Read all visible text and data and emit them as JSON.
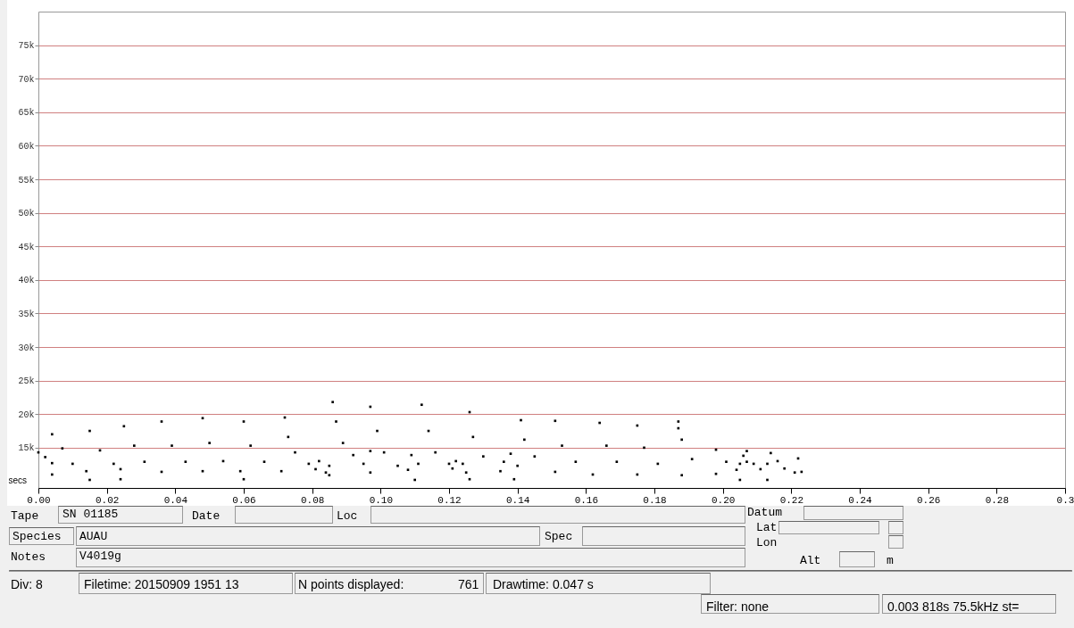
{
  "chart_data": {
    "type": "scatter",
    "xlabel": "secs",
    "x": [
      0.0,
      0.002,
      0.004,
      0.004,
      0.004,
      0.007,
      0.01,
      0.014,
      0.015,
      0.015,
      0.018,
      0.022,
      0.024,
      0.024,
      0.025,
      0.028,
      0.031,
      0.036,
      0.036,
      0.039,
      0.043,
      0.048,
      0.048,
      0.05,
      0.054,
      0.059,
      0.06,
      0.06,
      0.062,
      0.066,
      0.071,
      0.072,
      0.073,
      0.075,
      0.079,
      0.081,
      0.082,
      0.084,
      0.085,
      0.085,
      0.086,
      0.087,
      0.089,
      0.092,
      0.095,
      0.097,
      0.097,
      0.097,
      0.099,
      0.101,
      0.105,
      0.108,
      0.109,
      0.11,
      0.111,
      0.112,
      0.114,
      0.116,
      0.12,
      0.121,
      0.122,
      0.124,
      0.125,
      0.126,
      0.126,
      0.127,
      0.13,
      0.135,
      0.136,
      0.138,
      0.139,
      0.14,
      0.141,
      0.142,
      0.145,
      0.151,
      0.151,
      0.153,
      0.157,
      0.162,
      0.164,
      0.166,
      0.169,
      0.175,
      0.175,
      0.177,
      0.181,
      0.188,
      0.187,
      0.187,
      0.188,
      0.191,
      0.198,
      0.198,
      0.201,
      0.204,
      0.205,
      0.205,
      0.206,
      0.207,
      0.207,
      0.209,
      0.211,
      0.213,
      0.213,
      0.214,
      0.216,
      0.218,
      0.221,
      0.222,
      0.223
    ],
    "series": [
      {
        "color": "#000000",
        "values": [
          14300,
          13600,
          12700,
          11000,
          17000,
          14900,
          12600,
          11500,
          10200,
          17500,
          14600,
          12600,
          11800,
          10300,
          18200,
          15300,
          12900,
          11400,
          18900,
          15300,
          12900,
          11500,
          19400,
          15700,
          13000,
          11500,
          10300,
          18900,
          15300,
          12900,
          11500,
          19500,
          16600,
          14300,
          12600,
          11800,
          13000,
          11300,
          12300,
          10900,
          21800,
          18900,
          15700,
          13900,
          12600,
          11300,
          14500,
          21100,
          17500,
          14300,
          12300,
          11700,
          13900,
          10200,
          12600,
          21400,
          17500,
          14300,
          12600,
          11900,
          13000,
          12600,
          11300,
          10300,
          20300,
          16600,
          13700,
          11500,
          12900,
          14100,
          10300,
          12300,
          19100,
          16200,
          13700,
          11400,
          19000,
          15300,
          12900,
          11000,
          18700,
          15300,
          12900,
          11000,
          18300,
          15000,
          12600,
          10900,
          18900,
          17900,
          16200,
          13300,
          11100,
          14700,
          12900,
          11700,
          10200,
          12600,
          13800,
          12900,
          14500,
          12600,
          11800,
          10200,
          12600,
          14200,
          13000,
          11900,
          11300,
          13400,
          11400
        ]
      }
    ],
    "xlim": [
      0,
      0.3
    ],
    "xticks": [
      {
        "value": 0,
        "label": "0.00"
      },
      {
        "value": 0.02,
        "label": "0.02"
      },
      {
        "value": 0.04,
        "label": "0.04"
      },
      {
        "value": 0.06,
        "label": "0.06"
      },
      {
        "value": 0.08,
        "label": "0.08"
      },
      {
        "value": 0.1,
        "label": "0.10"
      },
      {
        "value": 0.12,
        "label": "0.12"
      },
      {
        "value": 0.14,
        "label": "0.14"
      },
      {
        "value": 0.16,
        "label": "0.16"
      },
      {
        "value": 0.18,
        "label": "0.18"
      },
      {
        "value": 0.2,
        "label": "0.20"
      },
      {
        "value": 0.22,
        "label": "0.22"
      },
      {
        "value": 0.24,
        "label": "0.24"
      },
      {
        "value": 0.26,
        "label": "0.26"
      },
      {
        "value": 0.28,
        "label": "0.28"
      },
      {
        "value": 0.3,
        "label": "0.3"
      }
    ],
    "ylim": [
      9000,
      80000
    ],
    "yticks": [
      {
        "value": 15000,
        "label": "15k"
      },
      {
        "value": 20000,
        "label": "20k"
      },
      {
        "value": 25000,
        "label": "25k"
      },
      {
        "value": 30000,
        "label": "30k"
      },
      {
        "value": 35000,
        "label": "35k"
      },
      {
        "value": 40000,
        "label": "40k"
      },
      {
        "value": 45000,
        "label": "45k"
      },
      {
        "value": 50000,
        "label": "50k"
      },
      {
        "value": 55000,
        "label": "55k"
      },
      {
        "value": 60000,
        "label": "60k"
      },
      {
        "value": 65000,
        "label": "65k"
      },
      {
        "value": 70000,
        "label": "70k"
      },
      {
        "value": 75000,
        "label": "75k"
      }
    ],
    "grid": "y",
    "marker": "square",
    "annotations": [
      "Tape",
      "SN 01185",
      "Date",
      "Loc",
      "Species",
      "AUAU",
      "Spec",
      "Notes",
      "V4019g",
      "Datum",
      "Lat",
      "Lon",
      "Alt",
      "m",
      "Div: 8",
      "Filetime: 20150909 1951 13",
      "N points displayed:",
      "761",
      "Drawtime: 0.047 s",
      "Filter: none",
      "0.003 818s  75.5kHz st="
    ]
  }
}
